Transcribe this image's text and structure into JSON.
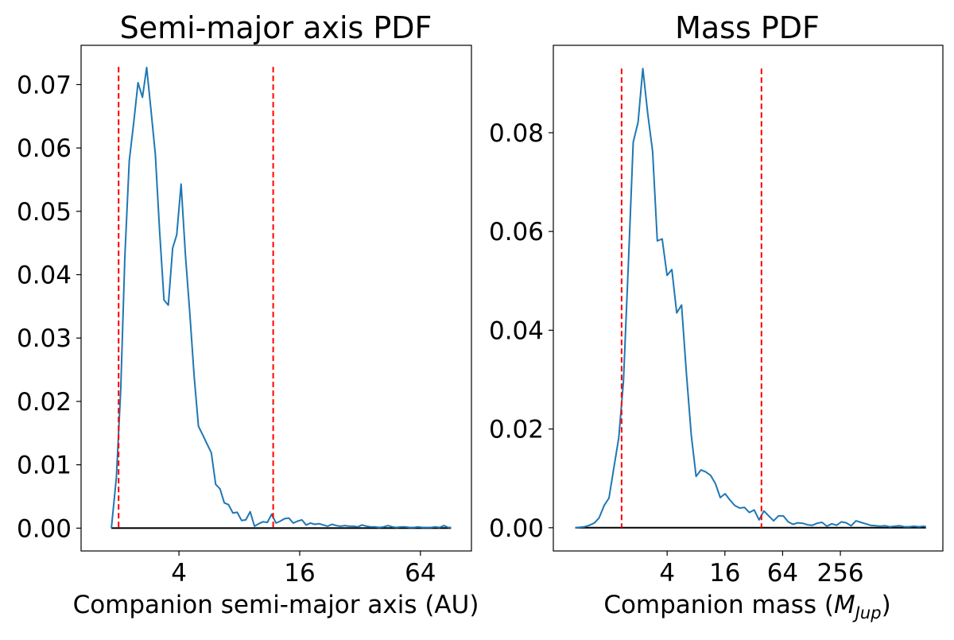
{
  "figure": {
    "background": "#ffffff"
  },
  "colors": {
    "pdf_line": "#1f77b4",
    "bounds_line": "#ff0000",
    "baseline": "#000000"
  },
  "chart_data": [
    {
      "type": "line",
      "title": "Semi-major axis PDF",
      "xlabel": "Companion semi-major axis (AU)",
      "xlabel_main": "Companion semi-major axis (AU)",
      "xlabel_math": "",
      "xlabel_math_sub": "",
      "xlabel_suffix": "",
      "ylabel": "",
      "xscale": "log2",
      "xlim": [
        1.3,
        115
      ],
      "ylim": [
        -0.0036,
        0.0762
      ],
      "xticks": [
        {
          "value": 4,
          "label": "4"
        },
        {
          "value": 16,
          "label": "16"
        },
        {
          "value": 64,
          "label": "64"
        }
      ],
      "yticks": [
        {
          "value": 0.0,
          "label": "0.00"
        },
        {
          "value": 0.01,
          "label": "0.01"
        },
        {
          "value": 0.02,
          "label": "0.02"
        },
        {
          "value": 0.03,
          "label": "0.03"
        },
        {
          "value": 0.04,
          "label": "0.04"
        },
        {
          "value": 0.05,
          "label": "0.05"
        },
        {
          "value": 0.06,
          "label": "0.06"
        },
        {
          "value": 0.07,
          "label": "0.07"
        }
      ],
      "bounds": {
        "x": [
          2.0,
          11.8
        ],
        "y_top": 0.0728
      },
      "baseline": {
        "x": [
          1.84,
          91.0
        ],
        "y": 0.0
      },
      "series": [
        {
          "x": [
            1.84,
            1.95,
            2.05,
            2.15,
            2.26,
            2.38,
            2.5,
            2.63,
            2.76,
            2.9,
            3.05,
            3.2,
            3.37,
            3.54,
            3.72,
            3.9,
            4.1,
            4.31,
            4.53,
            4.76,
            5.0,
            5.26,
            5.52,
            5.8,
            6.1,
            6.41,
            6.73,
            7.07,
            7.43,
            7.81,
            8.21,
            8.62,
            9.06,
            9.52,
            10.0,
            10.5,
            11.04,
            11.6,
            12.19,
            12.8,
            13.46,
            14.14,
            14.85,
            15.61,
            16.4,
            17.23,
            18.1,
            19.02,
            19.99,
            21.0,
            22.06,
            23.18,
            24.36,
            25.59,
            26.89,
            28.25,
            29.68,
            31.19,
            32.77,
            34.43,
            36.17,
            38.01,
            39.93,
            41.96,
            44.08,
            46.32,
            48.66,
            51.13,
            53.72,
            56.45,
            59.31,
            62.31,
            65.47,
            68.79,
            72.27,
            75.94,
            79.78,
            83.83,
            88.07,
            91.0
          ],
          "y": [
            0.0,
            0.008,
            0.022,
            0.043,
            0.058,
            0.064,
            0.0703,
            0.068,
            0.0727,
            0.066,
            0.059,
            0.047,
            0.036,
            0.0352,
            0.0442,
            0.0463,
            0.0543,
            0.043,
            0.034,
            0.024,
            0.0161,
            0.0147,
            0.0133,
            0.0119,
            0.0069,
            0.0062,
            0.004,
            0.0037,
            0.0024,
            0.0025,
            0.0012,
            0.0013,
            0.0026,
            0.0003,
            0.0007,
            0.001,
            0.0009,
            0.0022,
            0.0008,
            0.0011,
            0.0015,
            0.0016,
            0.0008,
            0.0011,
            0.0013,
            0.0005,
            0.0008,
            0.0006,
            0.0007,
            0.0005,
            0.0003,
            0.0006,
            0.0004,
            0.0003,
            0.0004,
            0.0003,
            0.0003,
            0.0002,
            0.0005,
            0.0003,
            0.0002,
            0.0002,
            0.0001,
            0.0002,
            0.0004,
            0.0002,
            0.0001,
            0.0002,
            0.0002,
            0.0001,
            0.0001,
            0.0002,
            0.0001,
            0.0001,
            0.0001,
            0.0002,
            0.0001,
            0.0004,
            0.0001,
            0.0001
          ]
        }
      ]
    },
    {
      "type": "line",
      "title": "Mass PDF",
      "xlabel": "Companion mass (M_Jup)",
      "xlabel_main": "Companion mass (",
      "xlabel_math": "M",
      "xlabel_math_sub": "Jup",
      "xlabel_suffix": ")",
      "ylabel": "",
      "xscale": "log2",
      "xlim": [
        0.26,
        3000
      ],
      "ylim": [
        -0.0047,
        0.0977
      ],
      "xticks": [
        {
          "value": 4,
          "label": "4"
        },
        {
          "value": 16,
          "label": "16"
        },
        {
          "value": 64,
          "label": "64"
        },
        {
          "value": 256,
          "label": "256"
        }
      ],
      "yticks": [
        {
          "value": 0.0,
          "label": "0.00"
        },
        {
          "value": 0.02,
          "label": "0.02"
        },
        {
          "value": 0.04,
          "label": "0.04"
        },
        {
          "value": 0.06,
          "label": "0.06"
        },
        {
          "value": 0.08,
          "label": "0.08"
        }
      ],
      "bounds": {
        "x": [
          1.34,
          38.5
        ],
        "y_top": 0.093
      },
      "baseline": {
        "x": [
          0.44,
          2000
        ],
        "y": 0.0
      },
      "series": [
        {
          "x": [
            0.44,
            0.49,
            0.55,
            0.62,
            0.7,
            0.78,
            0.88,
            0.99,
            1.11,
            1.25,
            1.4,
            1.58,
            1.77,
            1.99,
            2.23,
            2.51,
            2.82,
            3.16,
            3.55,
            3.99,
            4.48,
            5.03,
            5.65,
            6.35,
            7.13,
            8.01,
            9.0,
            10.11,
            11.36,
            12.76,
            14.33,
            16.1,
            18.09,
            20.32,
            22.82,
            25.64,
            28.8,
            32.36,
            36.35,
            40.83,
            45.87,
            51.53,
            57.89,
            65.03,
            73.05,
            82.07,
            92.19,
            103.57,
            116.35,
            130.7,
            146.83,
            164.95,
            185.3,
            208.16,
            233.85,
            262.7,
            295.11,
            331.52,
            372.43,
            418.38,
            470.0,
            527.99,
            593.14,
            666.32,
            748.54,
            840.9,
            944.65,
            1061.21,
            1192.14,
            1339.24,
            1504.48,
            1690.1,
            1898.64,
            2000.0
          ],
          "y": [
            0.0,
            0.0001,
            0.0002,
            0.0005,
            0.001,
            0.002,
            0.0045,
            0.006,
            0.012,
            0.0182,
            0.0296,
            0.0538,
            0.0781,
            0.0821,
            0.093,
            0.0838,
            0.0762,
            0.0581,
            0.0585,
            0.0511,
            0.0523,
            0.0435,
            0.0451,
            0.0313,
            0.0188,
            0.0104,
            0.0117,
            0.0113,
            0.0106,
            0.0089,
            0.0061,
            0.0069,
            0.0056,
            0.0045,
            0.004,
            0.0041,
            0.0031,
            0.0036,
            0.0016,
            0.0034,
            0.0024,
            0.0014,
            0.0024,
            0.0024,
            0.0012,
            0.0007,
            0.001,
            0.0009,
            0.0006,
            0.0005,
            0.0009,
            0.0011,
            0.0003,
            0.0008,
            0.0005,
            0.0012,
            0.001,
            0.0004,
            0.0014,
            0.0011,
            0.0008,
            0.0005,
            0.0004,
            0.0003,
            0.0004,
            0.0002,
            0.0003,
            0.0004,
            0.0002,
            0.0002,
            0.0003,
            0.0002,
            0.0003,
            0.0002
          ]
        }
      ]
    }
  ]
}
